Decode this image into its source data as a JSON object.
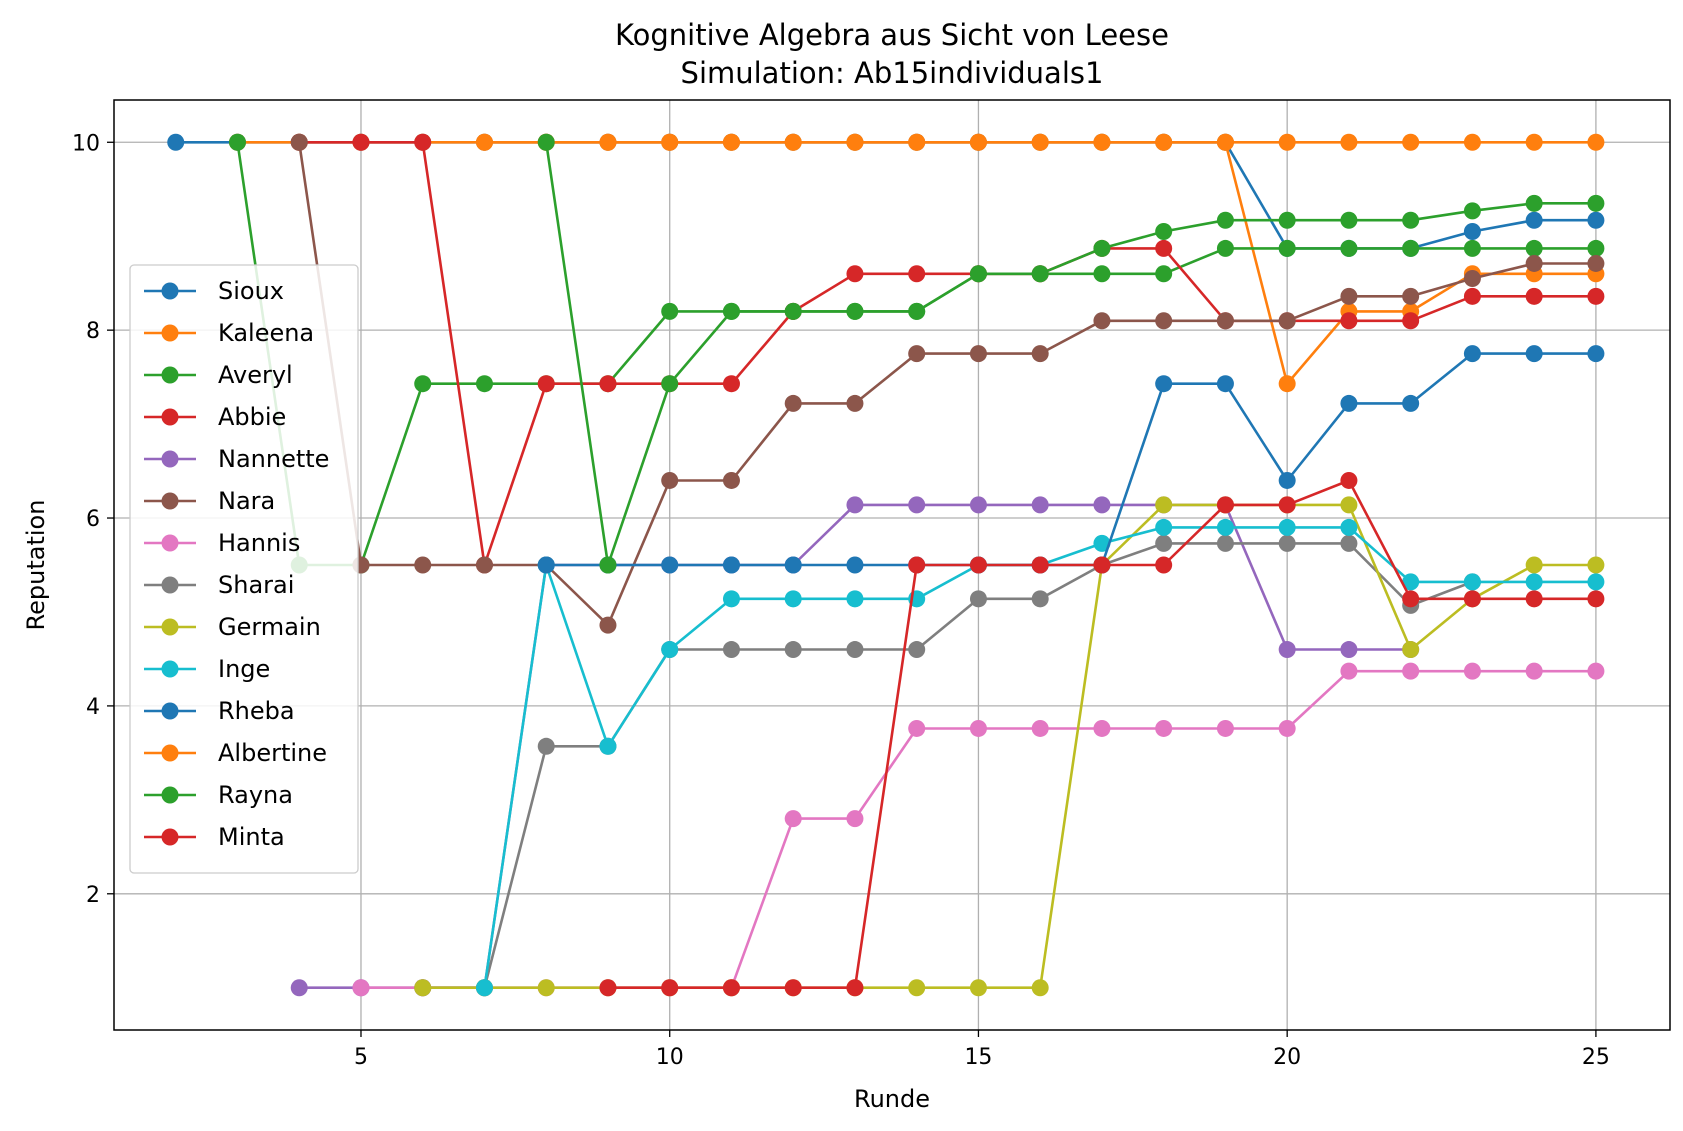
{
  "chart_data": {
    "type": "line",
    "title": "Kognitive Algebra aus Sicht von Leese",
    "subtitle": "Simulation: Ab15individuals1",
    "xlabel": "Runde",
    "ylabel": "Reputation",
    "xlim": [
      1,
      26.2
    ],
    "ylim": [
      0.55,
      10.45
    ],
    "xticks": [
      5,
      10,
      15,
      20,
      25
    ],
    "yticks": [
      2,
      4,
      6,
      8,
      10
    ],
    "grid": true,
    "legend_position": "center-left",
    "series": [
      {
        "name": "Sioux",
        "color": "#1f77b4",
        "x": [
          2,
          3,
          4,
          5,
          6,
          7,
          8,
          9,
          10,
          11,
          12,
          13,
          14,
          15,
          16,
          17,
          18,
          19,
          20,
          21,
          22,
          23,
          24,
          25
        ],
        "y": [
          10,
          10,
          10,
          10,
          10,
          10,
          10,
          10,
          10,
          10,
          10,
          10,
          10,
          10,
          10,
          10,
          10,
          10,
          8.87,
          8.87,
          8.87,
          9.05,
          9.17,
          9.17
        ]
      },
      {
        "name": "Kaleena",
        "color": "#ff7f0e",
        "x": [
          3,
          4,
          5,
          6,
          7,
          8,
          9,
          10,
          11,
          12,
          13,
          14,
          15,
          16,
          17,
          18,
          19,
          20,
          21,
          22,
          23,
          24,
          25
        ],
        "y": [
          10,
          10,
          10,
          10,
          10,
          10,
          10,
          10,
          10,
          10,
          10,
          10,
          10,
          10,
          10,
          10,
          10,
          7.43,
          8.2,
          8.2,
          8.6,
          8.6,
          8.6
        ]
      },
      {
        "name": "Averyl",
        "color": "#2ca02c",
        "x": [
          3,
          4,
          5,
          6,
          7,
          8,
          9,
          10,
          11,
          12,
          13,
          14,
          15,
          16,
          17,
          18,
          19,
          20,
          21,
          22,
          23,
          24,
          25
        ],
        "y": [
          10,
          5.5,
          5.5,
          7.43,
          7.43,
          7.43,
          7.43,
          8.2,
          8.2,
          8.2,
          8.2,
          8.2,
          8.6,
          8.6,
          8.6,
          8.6,
          8.87,
          8.87,
          8.87,
          8.87,
          8.87,
          8.87,
          8.87
        ]
      },
      {
        "name": "Abbie",
        "color": "#d62728",
        "x": [
          4,
          5,
          6,
          7,
          8,
          9,
          10,
          11,
          12,
          13,
          14,
          15,
          16,
          17,
          18,
          19,
          20,
          21,
          22,
          23,
          24,
          25
        ],
        "y": [
          10,
          10,
          10,
          5.5,
          7.43,
          7.43,
          7.43,
          7.43,
          8.2,
          8.6,
          8.6,
          8.6,
          8.6,
          8.87,
          8.87,
          8.1,
          8.1,
          8.1,
          8.1,
          8.36,
          8.36,
          8.36
        ]
      },
      {
        "name": "Nannette",
        "color": "#9467bd",
        "x": [
          4,
          5,
          6,
          7,
          8,
          9,
          10,
          11,
          12,
          13,
          14,
          15,
          16,
          17,
          18,
          19,
          20,
          21,
          22
        ],
        "y": [
          1,
          1,
          1,
          1,
          5.5,
          5.5,
          5.5,
          5.5,
          5.5,
          6.14,
          6.14,
          6.14,
          6.14,
          6.14,
          6.14,
          6.14,
          4.6,
          4.6,
          4.6
        ]
      },
      {
        "name": "Nara",
        "color": "#8c564b",
        "x": [
          4,
          5,
          6,
          7,
          8,
          9,
          10,
          11,
          12,
          13,
          14,
          15,
          16,
          17,
          18,
          19,
          20,
          21,
          22,
          23,
          24,
          25
        ],
        "y": [
          10,
          5.5,
          5.5,
          5.5,
          5.5,
          4.86,
          6.4,
          6.4,
          7.22,
          7.22,
          7.75,
          7.75,
          7.75,
          8.1,
          8.1,
          8.1,
          8.1,
          8.36,
          8.36,
          8.55,
          8.71,
          8.71
        ]
      },
      {
        "name": "Hannis",
        "color": "#e377c2",
        "x": [
          5,
          6,
          7,
          8,
          9,
          10,
          11,
          12,
          13,
          14,
          15,
          16,
          17,
          18,
          19,
          20,
          21,
          22,
          23,
          24,
          25
        ],
        "y": [
          1,
          1,
          1,
          1,
          1,
          1,
          1,
          2.8,
          2.8,
          3.76,
          3.76,
          3.76,
          3.76,
          3.76,
          3.76,
          3.76,
          4.37,
          4.37,
          4.37,
          4.37,
          4.37
        ]
      },
      {
        "name": "Sharai",
        "color": "#7f7f7f",
        "x": [
          6,
          7,
          8,
          9,
          10,
          11,
          12,
          13,
          14,
          15,
          16,
          17,
          18,
          19,
          20,
          21,
          22,
          23
        ],
        "y": [
          1,
          1,
          3.57,
          3.57,
          4.6,
          4.6,
          4.6,
          4.6,
          4.6,
          5.14,
          5.14,
          5.5,
          5.73,
          5.73,
          5.73,
          5.73,
          5.07,
          5.32
        ]
      },
      {
        "name": "Germain",
        "color": "#bcbd22",
        "x": [
          6,
          7,
          8,
          9,
          10,
          11,
          12,
          13,
          14,
          15,
          16,
          17,
          18,
          19,
          20,
          21,
          22,
          23,
          24,
          25
        ],
        "y": [
          1,
          1,
          1,
          1,
          1,
          1,
          1,
          1,
          1,
          1,
          1,
          5.5,
          6.14,
          6.14,
          6.14,
          6.14,
          4.6,
          5.14,
          5.5,
          5.5
        ]
      },
      {
        "name": "Inge",
        "color": "#17becf",
        "x": [
          7,
          8,
          9,
          10,
          11,
          12,
          13,
          14,
          15,
          16,
          17,
          18,
          19,
          20,
          21,
          22,
          23,
          24,
          25
        ],
        "y": [
          1,
          5.5,
          3.57,
          4.6,
          5.14,
          5.14,
          5.14,
          5.14,
          5.5,
          5.5,
          5.73,
          5.9,
          5.9,
          5.9,
          5.9,
          5.32,
          5.32,
          5.32,
          5.32
        ]
      },
      {
        "name": "Rheba",
        "color": "#1f77b4",
        "x": [
          8,
          9,
          10,
          11,
          12,
          13,
          14,
          15,
          16,
          17,
          18,
          19,
          20,
          21,
          22,
          23,
          24,
          25
        ],
        "y": [
          5.5,
          5.5,
          5.5,
          5.5,
          5.5,
          5.5,
          5.5,
          5.5,
          5.5,
          5.5,
          7.43,
          7.43,
          6.4,
          7.22,
          7.22,
          7.75,
          7.75,
          7.75
        ]
      },
      {
        "name": "Albertine",
        "color": "#ff7f0e",
        "x": [
          7,
          8,
          9,
          10,
          11,
          12,
          13,
          14,
          15,
          16,
          17,
          18,
          19,
          20,
          21,
          22,
          23,
          24,
          25
        ],
        "y": [
          10,
          10,
          10,
          10,
          10,
          10,
          10,
          10,
          10,
          10,
          10,
          10,
          10,
          10,
          10,
          10,
          10,
          10,
          10
        ]
      },
      {
        "name": "Rayna",
        "color": "#2ca02c",
        "x": [
          8,
          9,
          10,
          11,
          12,
          13,
          14,
          15,
          16,
          17,
          18,
          19,
          20,
          21,
          22,
          23,
          24,
          25
        ],
        "y": [
          10,
          5.5,
          7.43,
          8.2,
          8.2,
          8.2,
          8.2,
          8.6,
          8.6,
          8.87,
          9.05,
          9.17,
          9.17,
          9.17,
          9.17,
          9.27,
          9.35,
          9.35
        ]
      },
      {
        "name": "Minta",
        "color": "#d62728",
        "x": [
          9,
          10,
          11,
          12,
          13,
          14,
          15,
          16,
          17,
          18,
          19,
          20,
          21,
          22,
          23,
          24,
          25
        ],
        "y": [
          1,
          1,
          1,
          1,
          1,
          5.5,
          5.5,
          5.5,
          5.5,
          5.5,
          6.14,
          6.14,
          6.4,
          5.14,
          5.14,
          5.14,
          5.14
        ]
      }
    ]
  }
}
